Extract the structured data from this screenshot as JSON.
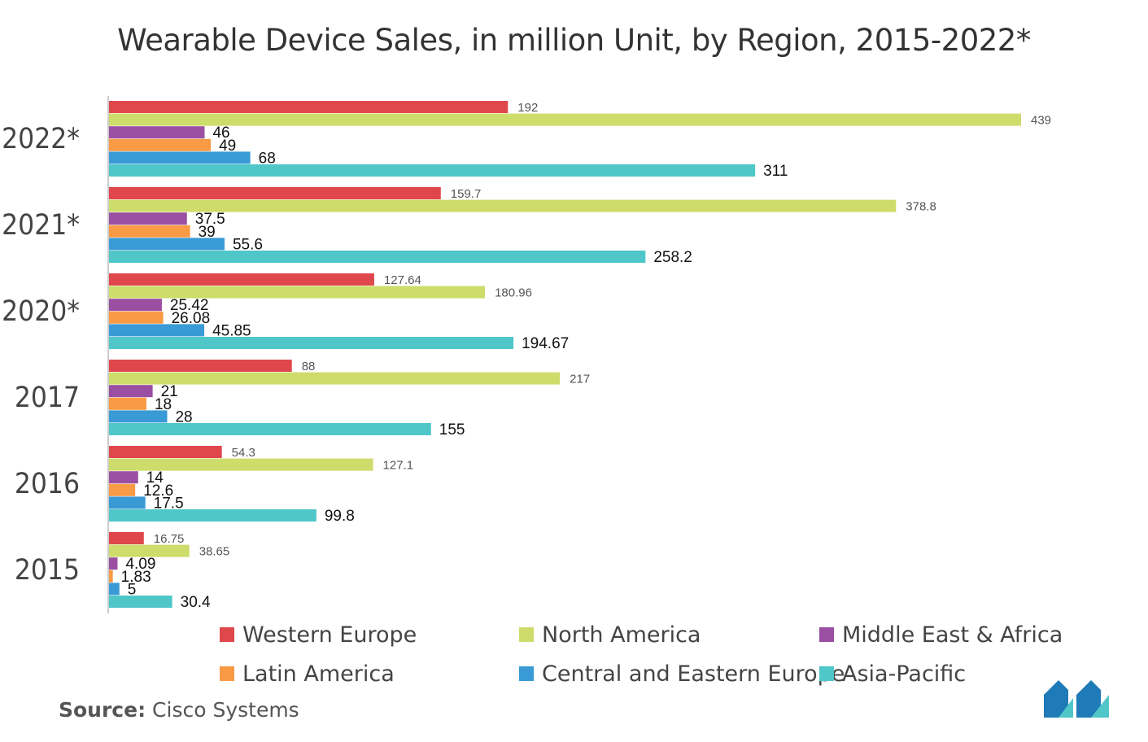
{
  "chart_data": {
    "type": "bar",
    "orientation": "horizontal",
    "title": "Wearable Device Sales, in million Unit, by Region, 2015-2022*",
    "categories": [
      "2022*",
      "2021*",
      "2020*",
      "2017",
      "2016",
      "2015"
    ],
    "series": [
      {
        "name": "Western Europe",
        "color": "#e0474c",
        "values": [
          192,
          159.7,
          127.64,
          88,
          54.3,
          16.75
        ],
        "labels": [
          "192",
          "159.7",
          "127.64",
          "88",
          "54.3",
          "16.75"
        ]
      },
      {
        "name": "North America",
        "color": "#cddc6a",
        "values": [
          439,
          378.8,
          180.96,
          217,
          127.1,
          38.65
        ],
        "labels": [
          "439",
          "378.8",
          "180.96",
          "217",
          "127.1",
          "38.65"
        ]
      },
      {
        "name": "Middle East & Africa",
        "color": "#9a4fa3",
        "values": [
          46,
          37.5,
          25.42,
          21,
          14,
          4.09
        ],
        "labels": [
          "46",
          "37.5",
          "25.42",
          "21",
          "14",
          "4.09"
        ]
      },
      {
        "name": "Latin America",
        "color": "#f99a45",
        "values": [
          49,
          39,
          26.08,
          18,
          12.6,
          1.83
        ],
        "labels": [
          "49",
          "39",
          "26.08",
          "18",
          "12.6",
          "1.83"
        ]
      },
      {
        "name": "Central and Eastern Europe",
        "color": "#3a9ad5",
        "values": [
          68,
          55.6,
          45.85,
          28,
          17.5,
          5
        ],
        "labels": [
          "68",
          "55.6",
          "45.85",
          "28",
          "17.5",
          "5"
        ]
      },
      {
        "name": "Asia-Pacific",
        "color": "#4fc6c8",
        "values": [
          311,
          258.2,
          194.67,
          155,
          99.8,
          30.4
        ],
        "labels": [
          "311",
          "258.2",
          "194.67",
          "155",
          "99.8",
          "30.4"
        ]
      }
    ],
    "xlim": [
      0,
      439
    ],
    "grid": false,
    "legend_position": "bottom"
  },
  "source": {
    "label": "Source:",
    "value": "Cisco Systems"
  },
  "logo": {
    "name": "mordor-intelligence-logo",
    "colors": [
      "#1f7ab8",
      "#4fc6c8"
    ]
  }
}
